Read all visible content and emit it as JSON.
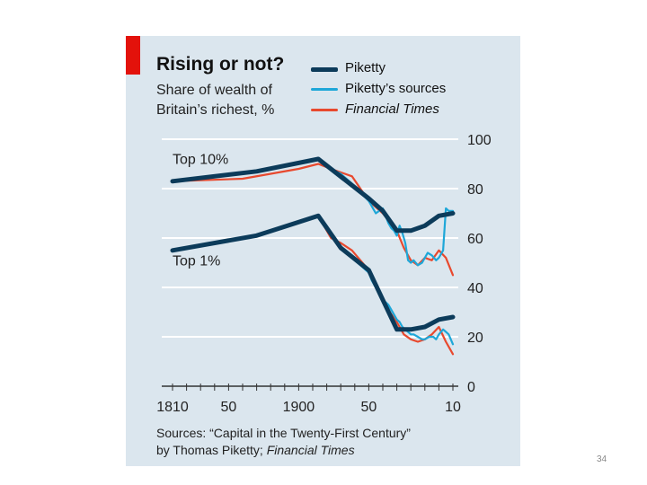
{
  "chart_data": {
    "type": "line",
    "title": "Rising or not?",
    "subtitle": "Share of wealth of Britain’s richest, %",
    "xlabel": "",
    "ylabel": "",
    "ylim": [
      0,
      100
    ],
    "xlim": [
      1810,
      2010
    ],
    "y_ticks": [
      0,
      20,
      40,
      60,
      80,
      100
    ],
    "x_ticks": [
      {
        "value": 1810,
        "label": "1810"
      },
      {
        "value": 1850,
        "label": "50"
      },
      {
        "value": 1900,
        "label": "1900"
      },
      {
        "value": 1950,
        "label": "50"
      },
      {
        "value": 2010,
        "label": "10"
      }
    ],
    "grid": true,
    "legend": [
      {
        "name": "Piketty",
        "color": "#0c3b5a"
      },
      {
        "name": "Piketty’s sources",
        "color": "#1ea7d8"
      },
      {
        "name": "Financial Times",
        "color": "#e8492e"
      }
    ],
    "series_labels": [
      {
        "text": "Top 10%",
        "x": 1810,
        "y": 90
      },
      {
        "text": "Top 1%",
        "x": 1810,
        "y": 49
      }
    ],
    "series": [
      {
        "name": "Piketty",
        "group": "Top 10%",
        "color": "#0c3b5a",
        "x": [
          1810,
          1870,
          1914,
          1950,
          1960,
          1970,
          1980,
          1990,
          2000,
          2010
        ],
        "values": [
          83,
          87,
          92,
          76,
          71,
          63,
          63,
          65,
          69,
          70
        ]
      },
      {
        "name": "Piketty’s sources",
        "group": "Top 10%",
        "color": "#1ea7d8",
        "x": [
          1923,
          1930,
          1938,
          1950,
          1955,
          1960,
          1962,
          1964,
          1966,
          1968,
          1970,
          1972,
          1974,
          1976,
          1978,
          1980,
          1982,
          1985,
          1988,
          1990,
          1992,
          1995,
          1998,
          2000,
          2003,
          2005,
          2007,
          2010
        ],
        "values": [
          88,
          86,
          82,
          75,
          70,
          72,
          69,
          66,
          64,
          63,
          61,
          65,
          62,
          58,
          51,
          50,
          51,
          49,
          50,
          52,
          54,
          53,
          51,
          52,
          55,
          72,
          71,
          71
        ]
      },
      {
        "name": "Financial Times",
        "group": "Top 10%",
        "color": "#e8492e",
        "x": [
          1810,
          1860,
          1900,
          1914,
          1923,
          1938,
          1950,
          1960,
          1970,
          1975,
          1980,
          1985,
          1990,
          1995,
          2000,
          2005,
          2010
        ],
        "values": [
          83,
          84,
          88,
          90,
          88,
          85,
          75,
          70,
          63,
          56,
          51,
          49,
          52,
          51,
          55,
          52,
          45
        ]
      },
      {
        "name": "Piketty",
        "group": "Top 1%",
        "color": "#0c3b5a",
        "x": [
          1810,
          1870,
          1914,
          1930,
          1950,
          1960,
          1970,
          1980,
          1990,
          2000,
          2010
        ],
        "values": [
          55,
          61,
          69,
          56,
          47,
          35,
          23,
          23,
          24,
          27,
          28
        ]
      },
      {
        "name": "Piketty’s sources",
        "group": "Top 1%",
        "color": "#1ea7d8",
        "x": [
          1923,
          1926,
          1930,
          1934,
          1938,
          1942,
          1946,
          1950,
          1952,
          1954,
          1956,
          1958,
          1960,
          1962,
          1964,
          1966,
          1968,
          1970,
          1972,
          1974,
          1976,
          1978,
          1980,
          1982,
          1985,
          1988,
          1990,
          1993,
          1996,
          1998,
          2000,
          2003,
          2005,
          2007,
          2010
        ],
        "values": [
          62,
          60,
          56,
          54,
          52,
          50,
          48,
          46,
          43,
          41,
          39,
          37,
          35,
          34,
          33,
          31,
          29,
          27,
          26,
          24,
          23,
          22,
          21,
          21,
          20,
          19,
          19,
          20,
          20,
          19,
          21,
          23,
          22,
          21,
          17
        ]
      },
      {
        "name": "Financial Times",
        "group": "Top 1%",
        "color": "#e8492e",
        "x": [
          1914,
          1923,
          1930,
          1938,
          1950,
          1960,
          1970,
          1975,
          1980,
          1985,
          1990,
          1995,
          2000,
          2005,
          2010
        ],
        "values": [
          69,
          60,
          58,
          55,
          47,
          34,
          26,
          21,
          19,
          18,
          19,
          21,
          24,
          18,
          13
        ]
      }
    ]
  },
  "source": {
    "line1": "Sources: “Capital in the Twenty-First Century”",
    "line2_prefix": "by Thomas Piketty; ",
    "line2_italic": "Financial Times"
  },
  "page_number": "34"
}
